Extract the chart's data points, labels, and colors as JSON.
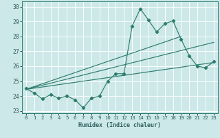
{
  "xlabel": "Humidex (Indice chaleur)",
  "xlim": [
    -0.5,
    23.5
  ],
  "ylim": [
    22.85,
    30.35
  ],
  "yticks": [
    23,
    24,
    25,
    26,
    27,
    28,
    29,
    30
  ],
  "xticks": [
    0,
    1,
    2,
    3,
    4,
    5,
    6,
    7,
    8,
    9,
    10,
    11,
    12,
    13,
    14,
    15,
    16,
    17,
    18,
    19,
    20,
    21,
    22,
    23
  ],
  "background_color": "#cce8e8",
  "grid_color": "#ffffff",
  "line_color": "#2e7d6e",
  "main_data_x": [
    0,
    1,
    2,
    3,
    4,
    5,
    6,
    7,
    8,
    9,
    10,
    11,
    12,
    13,
    14,
    15,
    16,
    17,
    18,
    19,
    20,
    21,
    22,
    23
  ],
  "main_data_y": [
    24.5,
    24.2,
    23.8,
    24.1,
    23.85,
    24.0,
    23.75,
    23.2,
    23.85,
    24.0,
    25.0,
    25.5,
    25.5,
    28.7,
    29.85,
    29.1,
    28.3,
    28.85,
    29.05,
    27.8,
    26.7,
    26.0,
    25.9,
    26.3
  ],
  "trend1_x": [
    0,
    23
  ],
  "trend1_y": [
    24.45,
    26.25
  ],
  "trend2_x": [
    0,
    19
  ],
  "trend2_y": [
    24.45,
    28.0
  ],
  "trend3_x": [
    0,
    23
  ],
  "trend3_y": [
    24.45,
    27.6
  ]
}
